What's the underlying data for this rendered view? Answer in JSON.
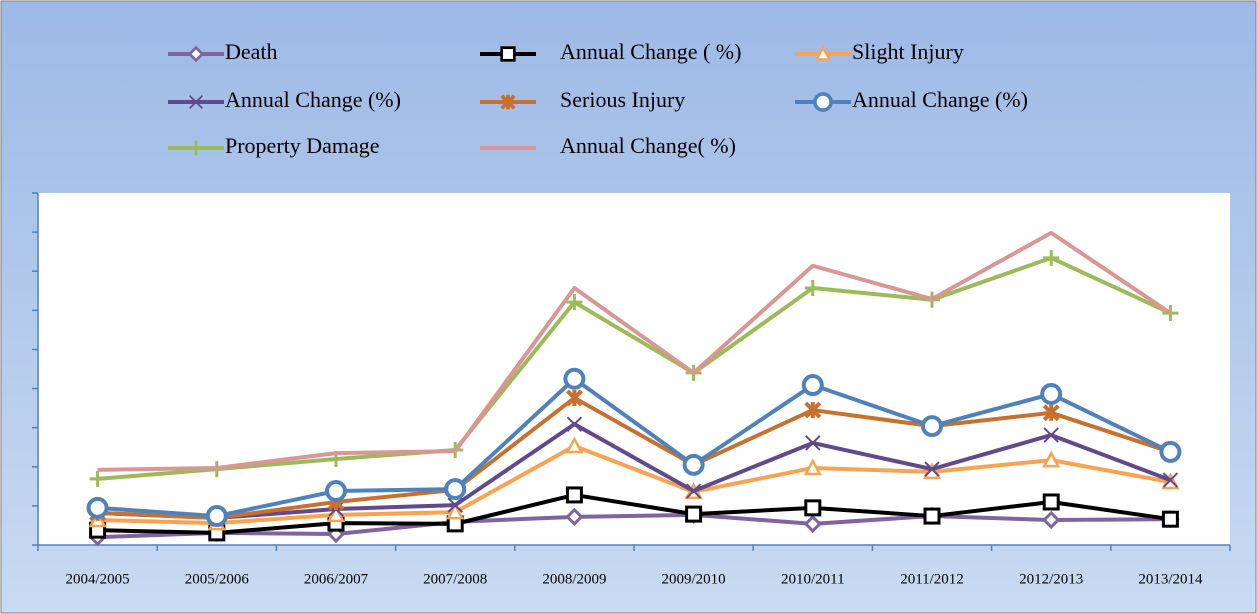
{
  "chart_data": {
    "type": "line",
    "categories": [
      "2004/2005",
      "2005/2006",
      "2006/2007",
      "2007/2008",
      "2008/2009",
      "2009/2010",
      "2010/2011",
      "2011/2012",
      "2012/2013",
      "2013/2014"
    ],
    "series": [
      {
        "name": "Death",
        "color": "#8064a2",
        "marker": "diamond",
        "values": [
          0.2,
          0.31,
          0.28,
          0.59,
          0.72,
          0.77,
          0.54,
          0.74,
          0.64,
          0.66
        ]
      },
      {
        "name": "Annual Change ( %)",
        "color": "#000000",
        "marker": "square",
        "values": [
          0.38,
          0.31,
          0.56,
          0.54,
          1.28,
          0.79,
          0.95,
          0.74,
          1.1,
          0.66
        ]
      },
      {
        "name": "Slight Injury",
        "color": "#f9a350",
        "marker": "triangle",
        "values": [
          0.64,
          0.56,
          0.77,
          0.84,
          2.53,
          1.36,
          1.97,
          1.87,
          2.17,
          1.61
        ]
      },
      {
        "name": "Annual Change (%)",
        "color": "#604a8c",
        "marker": "x",
        "values": [
          0.82,
          0.69,
          0.92,
          1.02,
          3.09,
          1.38,
          2.61,
          1.94,
          2.81,
          1.66
        ]
      },
      {
        "name": "Serious Injury",
        "color": "#c8702e",
        "marker": "star",
        "values": [
          0.82,
          0.69,
          1.1,
          1.41,
          3.76,
          2.05,
          3.45,
          3.04,
          3.38,
          2.38
        ]
      },
      {
        "name": "Annual Change (%)",
        "color": "#4f81bd",
        "marker": "circle",
        "values": [
          0.95,
          0.74,
          1.38,
          1.43,
          4.25,
          2.05,
          4.09,
          3.04,
          3.86,
          2.38
        ]
      },
      {
        "name": "Property Damage",
        "color": "#9bbb59",
        "marker": "plus",
        "values": [
          1.69,
          1.94,
          2.2,
          2.43,
          6.21,
          4.4,
          6.57,
          6.27,
          7.34,
          5.93
        ]
      },
      {
        "name": "Annual Change( %)",
        "color": "#d99694",
        "marker": "none",
        "values": [
          1.92,
          1.97,
          2.35,
          2.4,
          6.57,
          4.4,
          7.14,
          6.29,
          7.98,
          5.93
        ]
      }
    ],
    "ylim": [
      0,
      9
    ],
    "yticks": [
      0,
      1,
      2,
      3,
      4,
      5,
      6,
      7,
      8,
      9
    ],
    "show_ytick_labels": false,
    "grid": false
  }
}
